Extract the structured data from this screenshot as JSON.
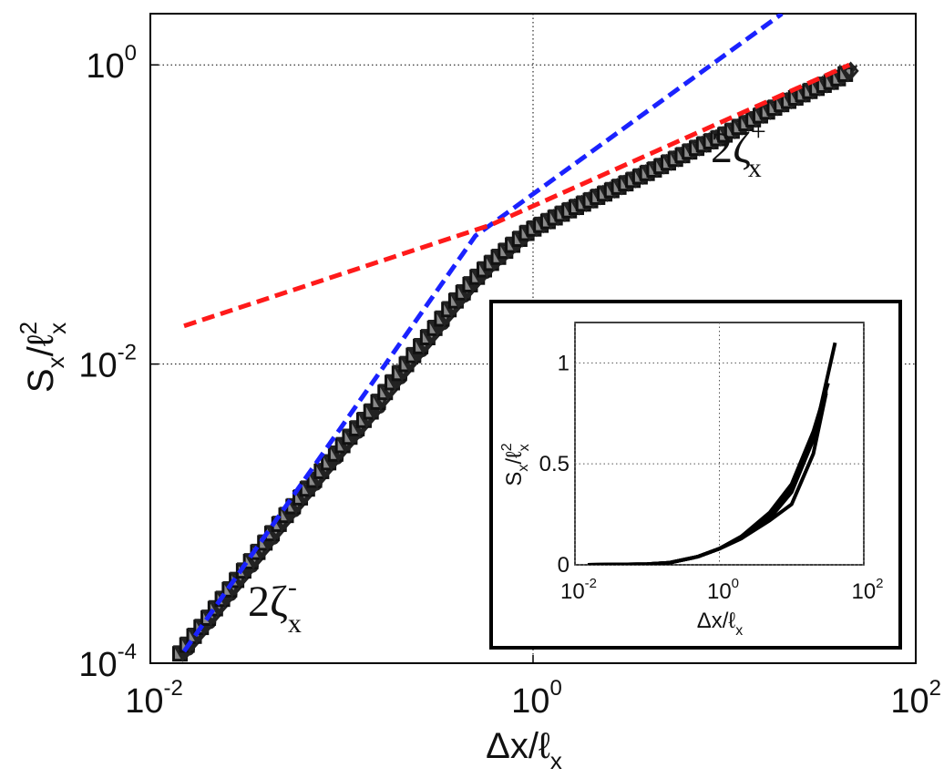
{
  "chart_data": [
    {
      "type": "scatter",
      "scale": "log-log",
      "grid": true,
      "x_ticks": [
        0.01,
        1,
        100
      ],
      "y_ticks": [
        0.0001,
        0.01,
        1
      ],
      "xlim": [
        0.01,
        100
      ],
      "ylim": [
        0.0001,
        2.2
      ],
      "xlabel": {
        "main": "Δx/ℓ",
        "sub": "x"
      },
      "ylabel": {
        "main": "S",
        "sub1": "x",
        "mid": "/ℓ",
        "sup": "2",
        "sub2": "x"
      },
      "annotations": {
        "small_scale": {
          "coef": "2ζ",
          "sup": "-",
          "sub": "x"
        },
        "large_scale": {
          "coef": "2ζ",
          "sup": "+",
          "sub": "x"
        }
      },
      "marker_styles": [
        "square",
        "triangle-down",
        "diamond",
        "circle"
      ],
      "data_curve": [
        {
          "x": 0.015,
          "y": 0.00012
        },
        {
          "x": 0.02,
          "y": 0.00019
        },
        {
          "x": 0.03,
          "y": 0.00038
        },
        {
          "x": 0.05,
          "y": 0.0009
        },
        {
          "x": 0.08,
          "y": 0.0019
        },
        {
          "x": 0.1,
          "y": 0.0027
        },
        {
          "x": 0.15,
          "y": 0.005
        },
        {
          "x": 0.2,
          "y": 0.0083
        },
        {
          "x": 0.3,
          "y": 0.016
        },
        {
          "x": 0.4,
          "y": 0.026
        },
        {
          "x": 0.5,
          "y": 0.036
        },
        {
          "x": 0.6,
          "y": 0.046
        },
        {
          "x": 0.8,
          "y": 0.063
        },
        {
          "x": 1.0,
          "y": 0.08
        },
        {
          "x": 1.5,
          "y": 0.105
        },
        {
          "x": 2,
          "y": 0.125
        },
        {
          "x": 3,
          "y": 0.16
        },
        {
          "x": 5,
          "y": 0.22
        },
        {
          "x": 8,
          "y": 0.3
        },
        {
          "x": 10,
          "y": 0.34
        },
        {
          "x": 15,
          "y": 0.45
        },
        {
          "x": 20,
          "y": 0.55
        },
        {
          "x": 30,
          "y": 0.7
        },
        {
          "x": 40,
          "y": 0.82
        },
        {
          "x": 45,
          "y": 0.9
        }
      ],
      "series": [
        {
          "style": "dashed",
          "color": "#1a22ff",
          "x": [
            0.015,
            0.5,
            20
          ],
          "y": [
            0.00012,
            0.072,
            2.2
          ]
        },
        {
          "style": "dashed",
          "color": "#ff1a1a",
          "x": [
            0.015,
            0.6,
            45
          ],
          "y": [
            0.018,
            0.085,
            1.0
          ]
        }
      ]
    },
    {
      "type": "line",
      "scale": "log-x",
      "grid": true,
      "x_ticks": [
        0.01,
        1,
        100
      ],
      "y_ticks": [
        0,
        0.5,
        1
      ],
      "y_tick_labels": [
        "0",
        "0.5",
        "1"
      ],
      "xlim": [
        0.01,
        100
      ],
      "ylim": [
        0,
        1.2
      ],
      "xlabel": {
        "main": "Δx/ℓ",
        "sub": "x"
      },
      "ylabel": {
        "main": "S",
        "sub1": "x",
        "mid": "/ℓ",
        "sup": "2",
        "sub2": "x"
      },
      "series": [
        {
          "x": [
            0.015,
            0.1,
            0.2,
            0.5,
            1,
            2,
            5,
            10,
            20,
            30
          ],
          "y": [
            0,
            0.003,
            0.01,
            0.04,
            0.08,
            0.14,
            0.24,
            0.38,
            0.62,
            0.86
          ]
        },
        {
          "x": [
            0.015,
            0.1,
            0.2,
            0.5,
            1,
            2,
            5,
            10,
            20,
            30
          ],
          "y": [
            0,
            0.003,
            0.01,
            0.04,
            0.08,
            0.13,
            0.22,
            0.3,
            0.55,
            0.85
          ]
        },
        {
          "x": [
            0.015,
            0.1,
            0.2,
            0.5,
            1,
            2,
            5,
            10,
            20,
            40
          ],
          "y": [
            0,
            0.003,
            0.01,
            0.04,
            0.08,
            0.13,
            0.23,
            0.36,
            0.62,
            1.1
          ]
        },
        {
          "x": [
            0.015,
            0.1,
            0.2,
            0.5,
            1,
            2,
            5,
            10,
            20,
            32
          ],
          "y": [
            0,
            0.003,
            0.01,
            0.04,
            0.08,
            0.14,
            0.26,
            0.4,
            0.66,
            0.9
          ]
        }
      ]
    }
  ]
}
